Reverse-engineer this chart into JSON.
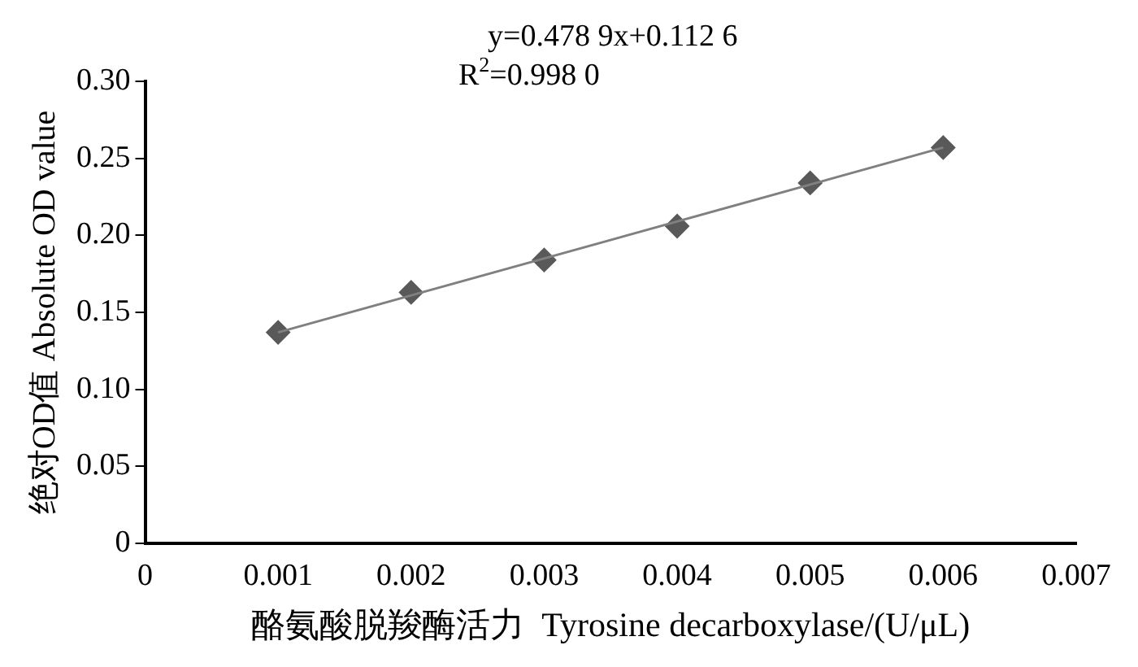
{
  "chart_data": {
    "type": "scatter",
    "xlabel": "酪氨酸脱羧酶活力  Tyrosine decarboxylase/(U/μL)",
    "ylabel": "绝对OD值 Absolute OD value",
    "annotations": [
      "y=0.478 9x+0.112 6",
      "R$^{2}$=0.998 0"
    ],
    "x": [
      0.001,
      0.002,
      0.003,
      0.004,
      0.005,
      0.006
    ],
    "series": [
      {
        "color": "#595959",
        "marker": "diamond",
        "values": [
          0.137,
          0.163,
          0.184,
          0.206,
          0.234,
          0.257
        ]
      },
      {
        "type": "line",
        "color": "#808080",
        "marker": "none",
        "x": [
          0.001,
          0.006
        ],
        "values": [
          0.137,
          0.257
        ]
      }
    ],
    "xlim": [
      0,
      0.007
    ],
    "xticks": [
      0,
      {
        "value": 0.001,
        "label": "0.001"
      },
      {
        "value": 0.002,
        "label": "0.002"
      },
      {
        "value": 0.003,
        "label": "0.003"
      },
      {
        "value": 0.004,
        "label": "0.004"
      },
      {
        "value": 0.005,
        "label": "0.005"
      },
      {
        "value": 0.006,
        "label": "0.006"
      },
      {
        "value": 0.007,
        "label": "0.007"
      }
    ],
    "ylim": [
      0,
      0.3
    ],
    "yticks": [
      0,
      {
        "value": 0.05,
        "label": "0.05"
      },
      {
        "value": 0.1,
        "label": "0.10"
      },
      {
        "value": 0.15,
        "label": "0.15"
      },
      {
        "value": 0.2,
        "label": "0.20"
      },
      {
        "value": 0.25,
        "label": "0.25"
      },
      {
        "value": 0.3,
        "label": "0.30"
      }
    ],
    "grid": false,
    "legend": false
  }
}
